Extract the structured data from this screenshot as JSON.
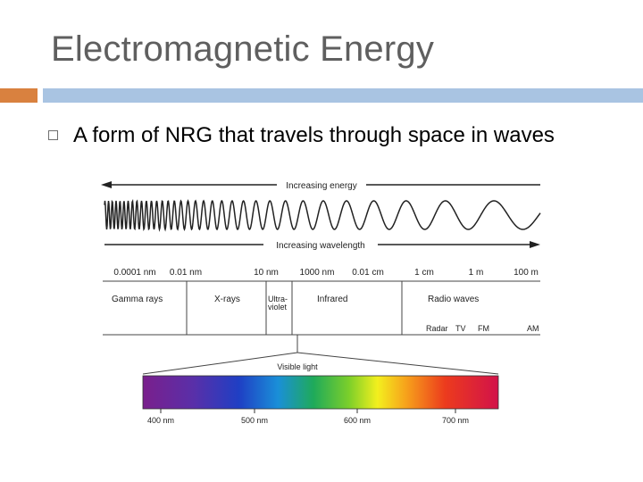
{
  "slide": {
    "title": "Electromagnetic Energy",
    "bullet": "A form of NRG that travels through space in waves"
  },
  "colors": {
    "title": "#5f5f5f",
    "accent_bar": "#d9813f",
    "main_bar": "#a9c4e2"
  },
  "icons": {
    "bullet": "hollow-square-bullet-icon"
  },
  "diagram": {
    "energy_label": "Increasing energy",
    "wavelength_label": "Increasing wavelength",
    "scale_labels": [
      "0.0001 nm",
      "0.01 nm",
      "10 nm",
      "1000 nm",
      "0.01 cm",
      "1 cm",
      "1 m",
      "100 m"
    ],
    "regions": {
      "gamma": "Gamma rays",
      "xray": "X-rays",
      "uv_line1": "Ultra-",
      "uv_line2": "violet",
      "infrared": "Infrared",
      "radio": "Radio waves",
      "radar": "Radar",
      "tv": "TV",
      "fm": "FM",
      "am": "AM"
    },
    "visible_label": "Visible light",
    "visible_ticks": [
      "400 nm",
      "500 nm",
      "600 nm",
      "700 nm"
    ]
  }
}
